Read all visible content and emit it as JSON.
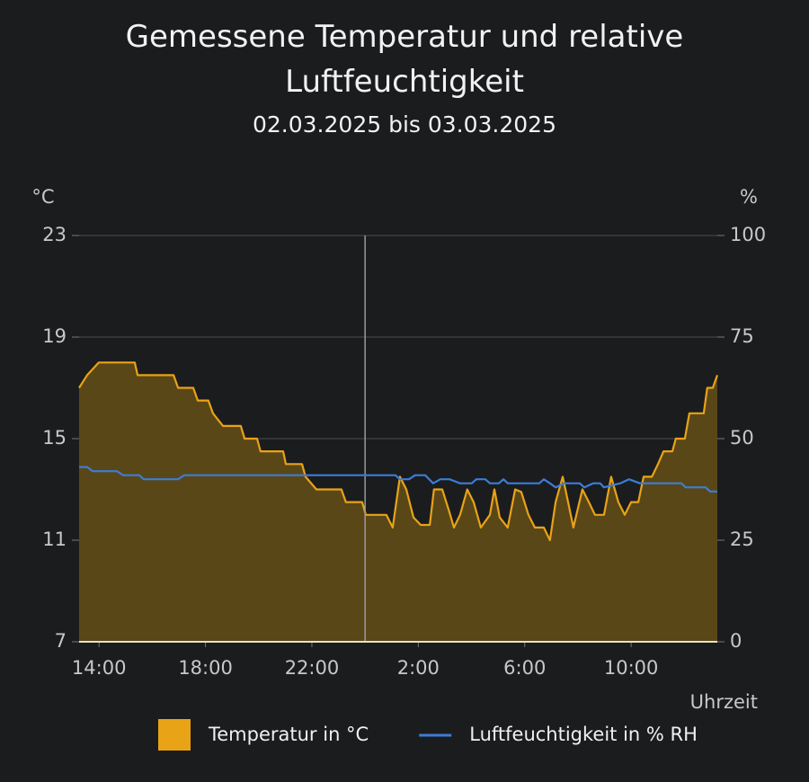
{
  "chart_data": {
    "type": "line",
    "title": "Gemessene Temperatur und relative Luftfeuchtigkeit",
    "subtitle": "02.03.2025 bis 03.03.2025",
    "x_label": "Uhrzeit",
    "y_label": "°C",
    "y2_label": "%",
    "xlim": [
      13.25,
      37.24
    ],
    "xticks": [
      {
        "value": 14,
        "label": "14:00"
      },
      {
        "value": 18,
        "label": "18:00"
      },
      {
        "value": 22,
        "label": "22:00"
      },
      {
        "value": 26,
        "label": "2:00"
      },
      {
        "value": 30,
        "label": "6:00"
      },
      {
        "value": 34,
        "label": "10:00"
      }
    ],
    "ylim": [
      7,
      23
    ],
    "yticks": [
      7,
      11,
      15,
      19,
      23
    ],
    "y2lim": [
      0,
      100
    ],
    "y2ticks": [
      0,
      25,
      50,
      75,
      100
    ],
    "grid": true,
    "legend": "bottom",
    "day_marker": 24,
    "series": [
      {
        "name": "Temperatur in °C",
        "color": "#e8a317",
        "area": true,
        "area_color": "#5a4718",
        "x": [
          13.25,
          13.55,
          13.99,
          15.34,
          15.45,
          16.8,
          16.97,
          17.54,
          17.71,
          18.11,
          18.28,
          18.66,
          19.33,
          19.47,
          19.94,
          20.07,
          20.92,
          21.02,
          21.63,
          21.76,
          22.17,
          23.11,
          23.28,
          23.89,
          24.03,
          24.8,
          25.04,
          25.31,
          25.55,
          25.82,
          26.09,
          26.43,
          26.59,
          26.9,
          27.17,
          27.34,
          27.57,
          27.84,
          28.08,
          28.35,
          28.69,
          28.86,
          29.06,
          29.36,
          29.64,
          29.87,
          30.14,
          30.38,
          30.72,
          30.95,
          31.16,
          31.43,
          31.63,
          31.83,
          32.17,
          32.41,
          32.64,
          32.98,
          33.25,
          33.52,
          33.76,
          34.0,
          34.27,
          34.47,
          34.78,
          35.01,
          35.22,
          35.55,
          35.68,
          36.02,
          36.19,
          36.73,
          36.86,
          37.07,
          37.24
        ],
        "values": [
          17,
          17.5,
          18,
          18,
          17.5,
          17.5,
          17,
          17,
          16.5,
          16.5,
          16,
          15.5,
          15.5,
          15,
          15,
          14.5,
          14.5,
          14,
          14,
          13.5,
          13,
          13,
          12.5,
          12.5,
          12,
          12,
          11.5,
          13.5,
          13,
          11.9,
          11.6,
          11.6,
          13,
          13,
          12.1,
          11.5,
          12,
          13,
          12.5,
          11.5,
          12,
          13,
          11.9,
          11.5,
          13,
          12.9,
          12,
          11.5,
          11.5,
          11,
          12.5,
          13.5,
          12.5,
          11.5,
          13,
          12.5,
          12,
          12,
          13.5,
          12.5,
          12,
          12.5,
          12.5,
          13.5,
          13.5,
          14,
          14.5,
          14.5,
          15,
          15,
          16,
          16,
          17,
          17,
          17.5
        ]
      },
      {
        "name": "Luftfeuchtigkeit in % RH",
        "color": "#3b7dd8",
        "axis": "y2",
        "x": [
          13.25,
          13.55,
          13.76,
          14.67,
          14.91,
          15.51,
          15.68,
          16.97,
          17.2,
          25.14,
          25.31,
          25.65,
          25.88,
          26.26,
          26.56,
          26.83,
          27.17,
          27.57,
          28.01,
          28.18,
          28.52,
          28.69,
          29.03,
          29.2,
          29.36,
          30.55,
          30.72,
          30.95,
          31.16,
          31.49,
          32.07,
          32.24,
          32.57,
          32.84,
          32.98,
          33.59,
          33.92,
          34.33,
          35.89,
          36.05,
          36.8,
          36.97,
          37.24
        ],
        "values": [
          43,
          43,
          42,
          42,
          41,
          41,
          40,
          40,
          41,
          41,
          40,
          40,
          41,
          41,
          39,
          40,
          40,
          39,
          39,
          40,
          40,
          39,
          39,
          40,
          39,
          39,
          40,
          39,
          38,
          39,
          39,
          38,
          39,
          39,
          38,
          39,
          40,
          39,
          39,
          38,
          38,
          37,
          37
        ]
      }
    ]
  }
}
